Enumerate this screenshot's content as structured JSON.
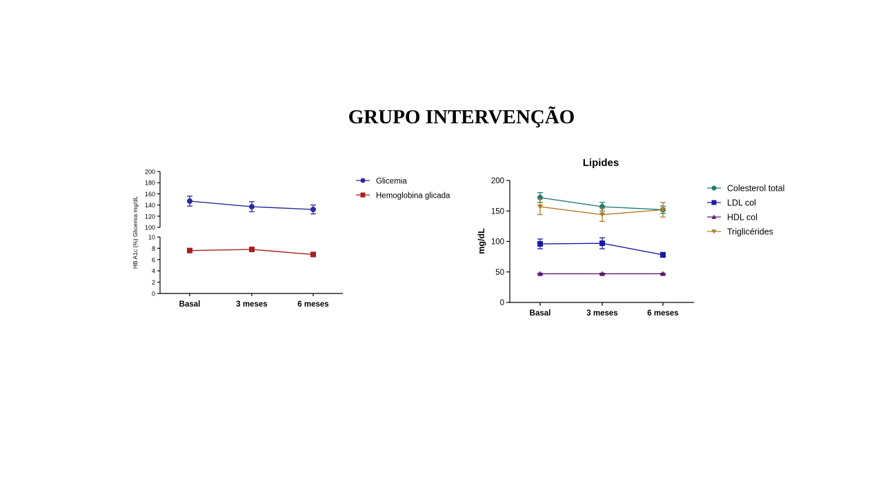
{
  "title": "GRUPO INTERVENÇÃO",
  "chart_data": [
    {
      "type": "line",
      "title": "",
      "categories": [
        "Basal",
        "3 meses",
        "6 meses"
      ],
      "ylabel": "HB A1c (%) Glicemia mg/dL",
      "panels": [
        {
          "ylim": [
            100,
            200
          ],
          "yticks": [
            100,
            120,
            140,
            160,
            180,
            200
          ],
          "ytick_labels": [
            "100",
            "120",
            "140",
            "160",
            "180",
            "200"
          ]
        },
        {
          "ylim": [
            0,
            10
          ],
          "yticks": [
            0,
            2,
            4,
            6,
            8,
            10
          ],
          "ytick_labels": [
            "0",
            "2",
            "4",
            "6",
            "8",
            "10"
          ]
        }
      ],
      "legend_position": "right",
      "series": [
        {
          "name": "Glicemia",
          "panel": 0,
          "values": [
            147,
            137,
            132
          ],
          "errors": [
            9,
            9,
            8
          ],
          "color": "#2a2a9e",
          "marker": "circle"
        },
        {
          "name": "Hemoglobina glicada",
          "panel": 1,
          "values": [
            7.6,
            7.8,
            6.9
          ],
          "errors": [
            0.3,
            0.3,
            0.3
          ],
          "color": "#a81f1f",
          "marker": "square"
        }
      ]
    },
    {
      "type": "line",
      "title": "Lipides",
      "categories": [
        "Basal",
        "3 meses",
        "6 meses"
      ],
      "ylabel": "mg/dL",
      "ylim": [
        0,
        200
      ],
      "yticks": [
        0,
        50,
        100,
        150,
        200
      ],
      "ytick_labels": [
        "0",
        "50",
        "100",
        "150",
        "200"
      ],
      "legend_position": "right",
      "series": [
        {
          "name": "Colesterol total",
          "values": [
            172,
            157,
            152
          ],
          "errors": [
            8,
            7,
            6
          ],
          "color": "#1f7a7a",
          "marker": "circle"
        },
        {
          "name": "LDL col",
          "values": [
            96,
            97,
            78
          ],
          "errors": [
            8,
            9,
            4
          ],
          "color": "#1a1aa8",
          "marker": "square"
        },
        {
          "name": "HDL col",
          "values": [
            47,
            47,
            47
          ],
          "errors": [
            1,
            1,
            1
          ],
          "color": "#5a1a6e",
          "marker": "triangle-up"
        },
        {
          "name": "Triglicérides",
          "values": [
            157,
            144,
            152
          ],
          "errors": [
            13,
            11,
            12
          ],
          "color": "#b07a20",
          "marker": "triangle-down"
        }
      ]
    }
  ]
}
